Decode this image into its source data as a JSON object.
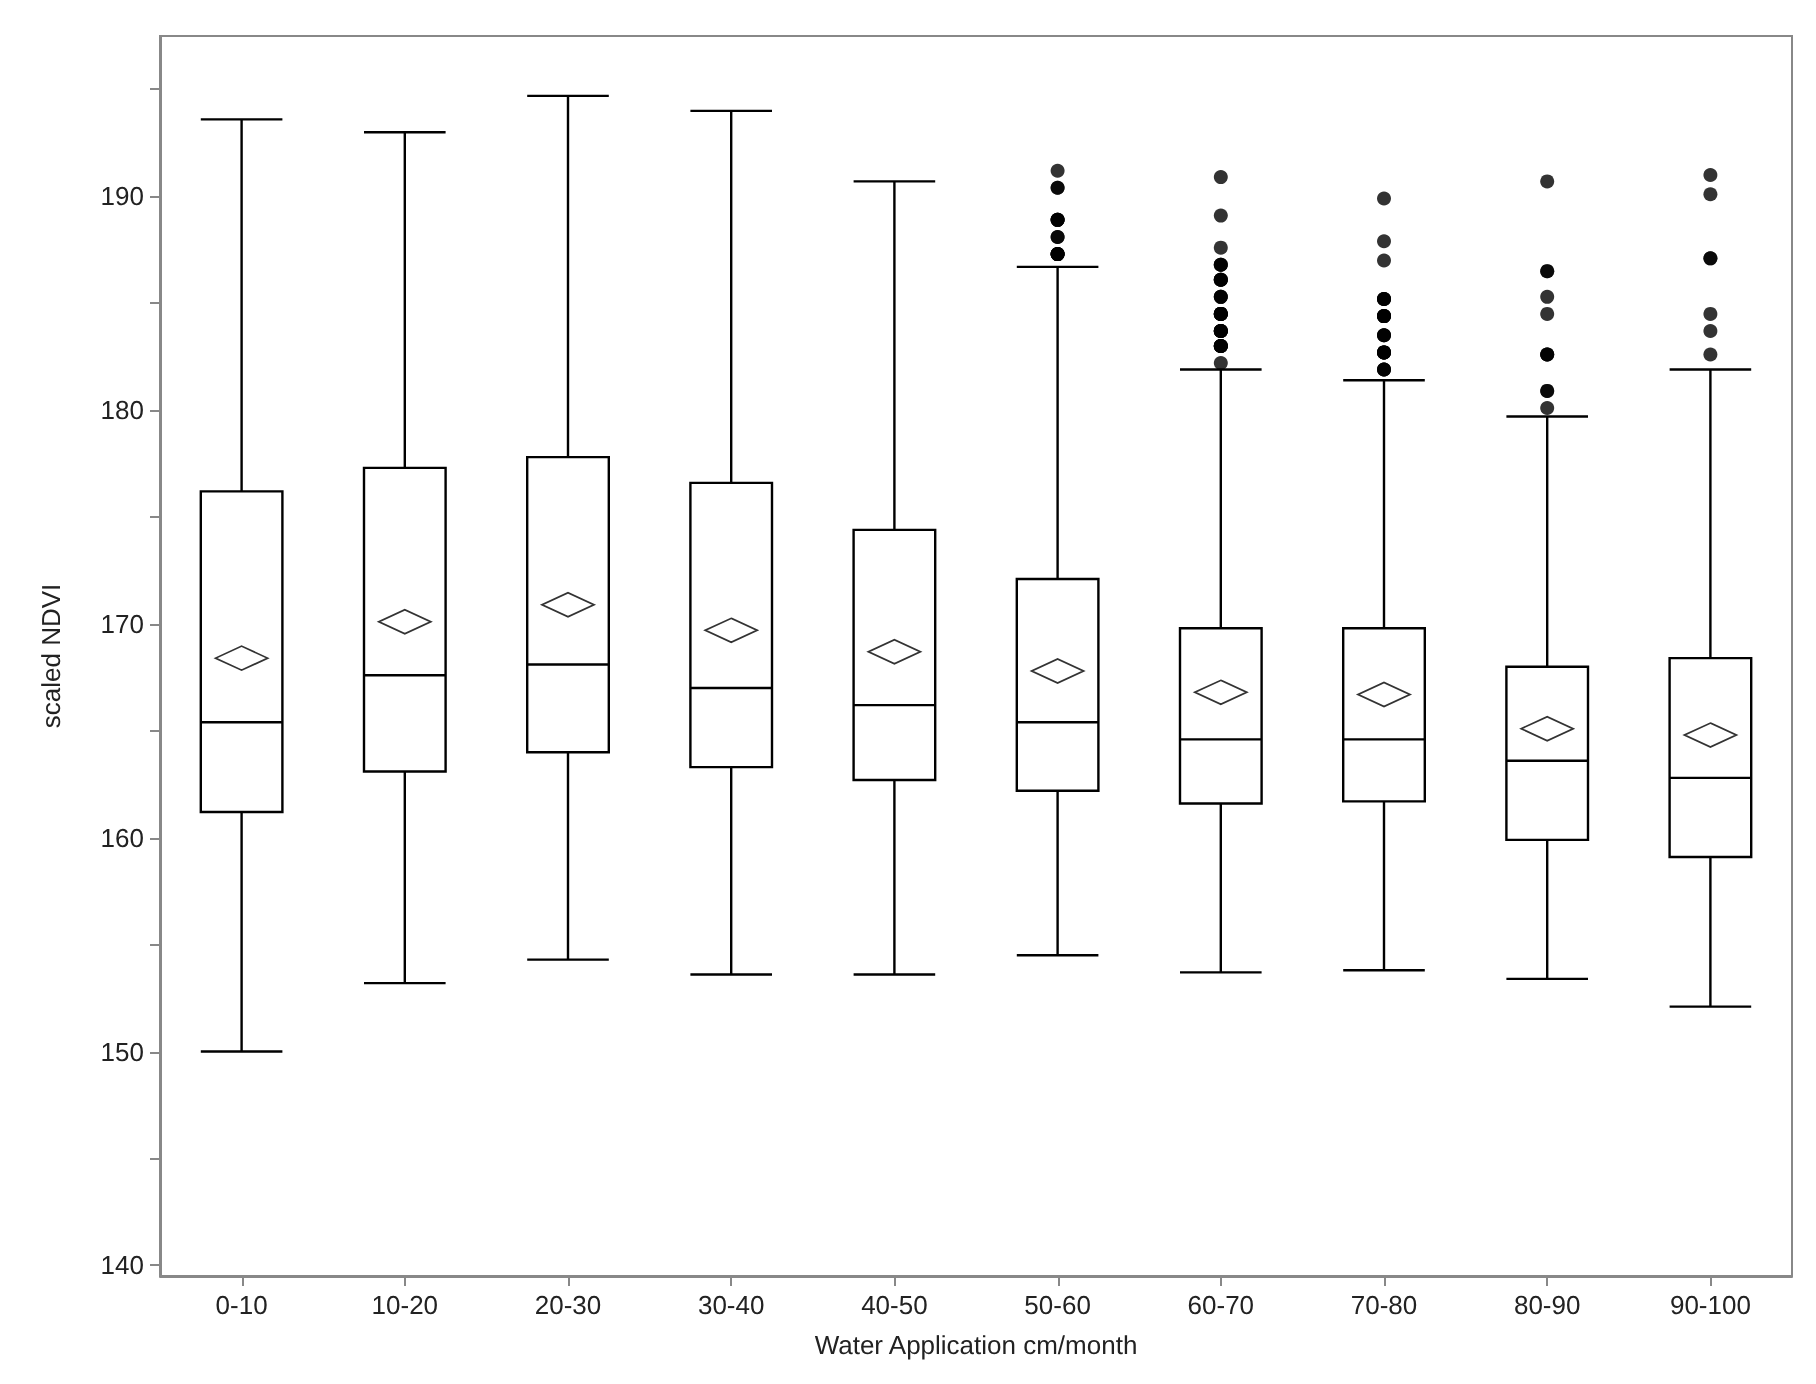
{
  "chart_data": {
    "type": "box",
    "xlabel": "Water Application cm/month",
    "ylabel": "scaled NDVI",
    "categories": [
      "0-10",
      "10-20",
      "20-30",
      "30-40",
      "40-50",
      "50-60",
      "60-70",
      "70-80",
      "80-90",
      "90-100"
    ],
    "ylim": [
      139.5,
      197.5
    ],
    "yticks": [
      140,
      {
        "value": 145,
        "label": null
      },
      150,
      {
        "value": 155,
        "label": null
      },
      160,
      {
        "value": 165,
        "label": null
      },
      170,
      {
        "value": 175,
        "label": null
      },
      180,
      {
        "value": 185,
        "label": null
      },
      190,
      {
        "value": 195,
        "label": null
      }
    ],
    "grid": false,
    "marker": "diamond",
    "boxes": [
      {
        "low": 150.0,
        "q1": 161.2,
        "median": 165.4,
        "q3": 176.2,
        "high": 193.6,
        "mean": 168.4
      },
      {
        "low": 153.2,
        "q1": 163.1,
        "median": 167.6,
        "q3": 177.3,
        "high": 193.0,
        "mean": 170.1
      },
      {
        "low": 154.3,
        "q1": 164.0,
        "median": 168.1,
        "q3": 177.8,
        "high": 194.7,
        "mean": 170.9
      },
      {
        "low": 153.6,
        "q1": 163.3,
        "median": 167.0,
        "q3": 176.6,
        "high": 194.0,
        "mean": 169.7
      },
      {
        "low": 153.6,
        "q1": 162.7,
        "median": 166.2,
        "q3": 174.4,
        "high": 190.7,
        "mean": 168.7
      },
      {
        "low": 154.5,
        "q1": 162.2,
        "median": 165.4,
        "q3": 172.1,
        "high": 186.7,
        "mean": 167.8,
        "outliers": [
          191.2,
          190.4,
          190.4,
          188.9,
          188.9,
          188.9,
          188.9,
          188.1,
          188.1,
          187.3,
          187.3,
          187.3,
          187.3,
          187.3
        ]
      },
      {
        "low": 153.7,
        "q1": 161.6,
        "median": 164.6,
        "q3": 169.8,
        "high": 181.9,
        "mean": 166.8,
        "outliers": [
          190.9,
          189.1,
          187.6,
          186.8,
          186.8,
          186.8,
          186.1,
          186.1,
          186.1,
          186.1,
          185.3,
          185.3,
          185.3,
          184.5,
          184.5,
          184.5,
          184.5,
          184.5,
          184.5,
          183.7,
          183.7,
          183.7,
          183.7,
          183.7,
          183.7,
          183.0,
          183.0,
          183.0,
          183.0,
          183.0,
          183.0,
          182.2
        ]
      },
      {
        "low": 153.8,
        "q1": 161.7,
        "median": 164.6,
        "q3": 169.8,
        "high": 181.4,
        "mean": 166.7,
        "outliers": [
          189.9,
          187.9,
          187.0,
          185.2,
          185.2,
          185.2,
          185.2,
          184.4,
          184.4,
          184.4,
          184.4,
          184.4,
          183.5,
          183.5,
          183.5,
          182.7,
          182.7,
          182.7,
          182.7,
          182.7,
          181.9,
          181.9,
          181.9
        ]
      },
      {
        "low": 153.4,
        "q1": 159.9,
        "median": 163.6,
        "q3": 168.0,
        "high": 179.7,
        "mean": 165.1,
        "outliers": [
          190.7,
          186.5,
          186.5,
          185.3,
          184.5,
          182.6,
          182.6,
          182.6,
          180.9,
          180.9,
          180.1
        ]
      },
      {
        "low": 152.1,
        "q1": 159.1,
        "median": 162.8,
        "q3": 168.4,
        "high": 181.9,
        "mean": 164.8,
        "outliers": [
          191.0,
          190.1,
          187.1,
          187.1,
          184.5,
          183.7,
          182.6
        ]
      }
    ]
  }
}
